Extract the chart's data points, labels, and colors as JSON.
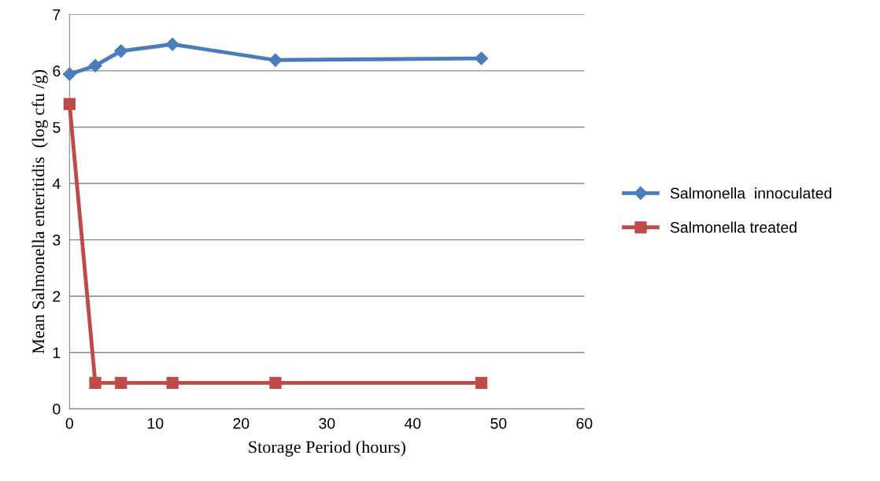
{
  "chart_data": {
    "type": "line",
    "xlabel": "Storage Period (hours)",
    "ylabel": "Mean Salmonella enteritidis  (log cfu /g)",
    "x": [
      0,
      3,
      6,
      12,
      24,
      48
    ],
    "series": [
      {
        "name": "Salmonella  innoculated",
        "color": "#4a7ebb",
        "marker": "diamond",
        "values": [
          5.94,
          6.09,
          6.35,
          6.47,
          6.19,
          6.22
        ]
      },
      {
        "name": "Salmonella treated",
        "color": "#be4b48",
        "marker": "square",
        "values": [
          5.41,
          0.46,
          0.46,
          0.46,
          0.46,
          0.46
        ]
      }
    ],
    "xlim": [
      0,
      60
    ],
    "xticks": [
      0,
      10,
      20,
      30,
      40,
      50,
      60
    ],
    "ylim": [
      0,
      7
    ],
    "yticks": [
      0,
      1,
      2,
      3,
      4,
      5,
      6,
      7
    ],
    "grid": "y",
    "legend": "right",
    "line_style": "solid"
  }
}
